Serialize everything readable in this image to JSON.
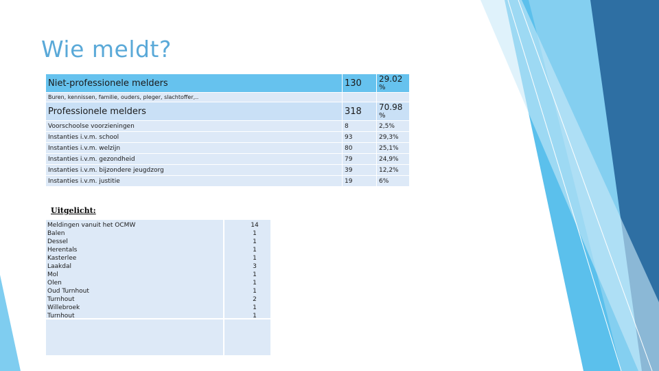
{
  "title": "Wie meldt?",
  "rows": [
    {
      "label": "Niet-professionele melders",
      "count": "130",
      "pct": "29.02",
      "unit": "%",
      "type": "head-a"
    },
    {
      "label": "Buren, kennissen, familie, ouders, pleger, slachtoffer,..",
      "count": "",
      "pct": "",
      "unit": "",
      "type": "note"
    },
    {
      "label": "Professionele melders",
      "count": "318",
      "pct": "70.98",
      "unit": "%",
      "type": "head-b"
    },
    {
      "label": "Voorschoolse voorzieningen",
      "count": "8",
      "pct": "2,5%",
      "unit": "",
      "type": "row"
    },
    {
      "label": "Instanties i.v.m. school",
      "count": "93",
      "pct": "29,3%",
      "unit": "",
      "type": "row"
    },
    {
      "label": "Instanties i.v.m. welzijn",
      "count": "80",
      "pct": "25,1%",
      "unit": "",
      "type": "row"
    },
    {
      "label": "Instanties i.v.m. gezondheid",
      "count": "79",
      "pct": "24,9%",
      "unit": "",
      "type": "row"
    },
    {
      "label": "Instanties i.v.m. bijzondere jeugdzorg",
      "count": "39",
      "pct": "12,2%",
      "unit": "",
      "type": "row"
    },
    {
      "label": "Instanties i.v.m. justitie",
      "count": "19",
      "pct": "6%",
      "unit": "",
      "type": "row"
    }
  ],
  "uitgelicht_label": "Uitgelicht:",
  "ocmw": [
    {
      "name": "Meldingen vanuit het OCMW",
      "value": "14"
    },
    {
      "name": "Balen",
      "value": "1"
    },
    {
      "name": "Dessel",
      "value": "1"
    },
    {
      "name": "Herentals",
      "value": "1"
    },
    {
      "name": "Kasterlee",
      "value": "1"
    },
    {
      "name": "Laakdal",
      "value": "3"
    },
    {
      "name": "Mol",
      "value": "1"
    },
    {
      "name": "Olen",
      "value": "1"
    },
    {
      "name": "Oud Turnhout",
      "value": "1"
    },
    {
      "name": "Turnhout",
      "value": "2"
    },
    {
      "name": "Willebroek",
      "value": "1"
    },
    {
      "name": "Turnhout",
      "value": "1"
    }
  ],
  "colors": {
    "title": "#5aa9d8",
    "head_a": "#66c2ee",
    "cell": "#dde9f7"
  }
}
